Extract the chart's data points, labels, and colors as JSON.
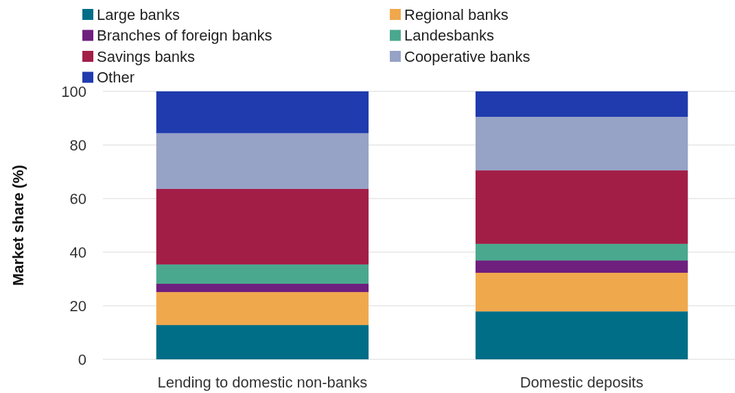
{
  "chart_data": {
    "type": "bar",
    "stacked": true,
    "ylabel": "Market share (%)",
    "categories": [
      "Lending to domestic non-banks",
      "Domestic deposits"
    ],
    "series": [
      {
        "name": "Large banks",
        "color": "#006e87",
        "values": [
          12.8,
          17.9
        ]
      },
      {
        "name": "Regional banks",
        "color": "#f0a84c",
        "values": [
          12.3,
          14.4
        ]
      },
      {
        "name": "Branches of foreign banks",
        "color": "#6f1f7e",
        "values": [
          3.1,
          4.6
        ]
      },
      {
        "name": "Landesbanks",
        "color": "#4aa88e",
        "values": [
          7.2,
          6.2
        ]
      },
      {
        "name": "Savings banks",
        "color": "#a31e47",
        "values": [
          28.2,
          27.4
        ]
      },
      {
        "name": "Cooperative banks",
        "color": "#96a2c6",
        "values": [
          20.8,
          20.0
        ]
      },
      {
        "name": "Other",
        "color": "#1f3bad",
        "values": [
          15.6,
          9.5
        ]
      }
    ],
    "ylim": [
      0,
      100
    ],
    "yticks": [
      0,
      20,
      40,
      60,
      80,
      100
    ],
    "grid": "y",
    "legend": "top left"
  }
}
